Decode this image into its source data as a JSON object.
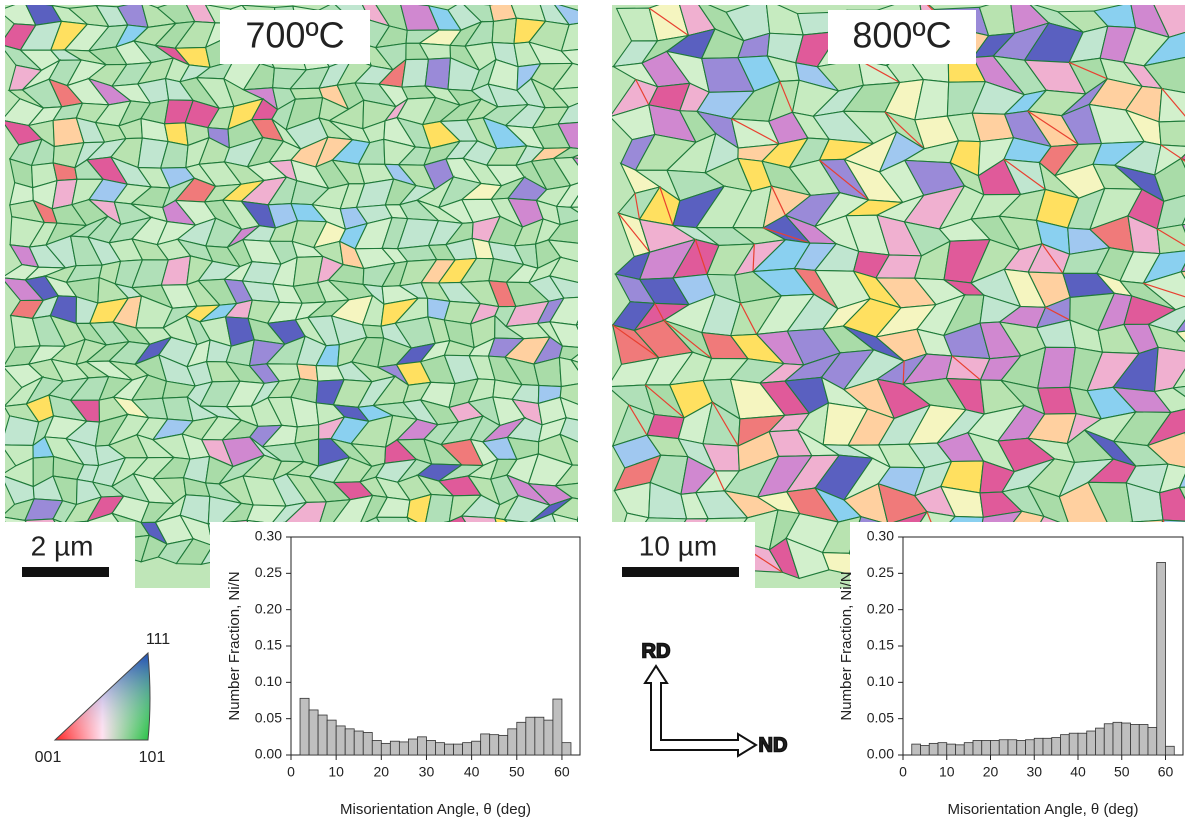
{
  "panels": [
    {
      "temperature": "700ºC",
      "scale_bar": "2 µm"
    },
    {
      "temperature": "800ºC",
      "scale_bar": "10 µm"
    }
  ],
  "ipf_legend": {
    "top": "111",
    "left": "001",
    "right": "101"
  },
  "sample_axes": {
    "vertical": "RD",
    "horizontal": "ND"
  },
  "chart_data": [
    {
      "type": "histogram",
      "xlabel": "Misorientation Angle, θ (deg)",
      "ylabel": "Number Fraction, Ni/N",
      "bins": [
        2,
        4,
        6,
        8,
        10,
        12,
        14,
        16,
        18,
        20,
        22,
        24,
        26,
        28,
        30,
        32,
        34,
        36,
        38,
        40,
        42,
        44,
        46,
        48,
        50,
        52,
        54,
        56,
        58,
        60,
        62
      ],
      "values": [
        0.078,
        0.062,
        0.055,
        0.048,
        0.04,
        0.036,
        0.033,
        0.031,
        0.02,
        0.016,
        0.019,
        0.018,
        0.022,
        0.025,
        0.02,
        0.017,
        0.015,
        0.015,
        0.017,
        0.019,
        0.029,
        0.028,
        0.027,
        0.036,
        0.045,
        0.052,
        0.052,
        0.048,
        0.077,
        0.017
      ],
      "color": "#bfbfbf",
      "xlim": [
        0,
        64
      ],
      "xticks": [
        0,
        10,
        20,
        30,
        40,
        50,
        60
      ],
      "ylim": [
        0,
        0.3
      ],
      "yticks": [
        {
          "value": 0,
          "label": "0.00"
        },
        {
          "value": 0.05,
          "label": "0.05"
        },
        {
          "value": 0.1,
          "label": "0.10"
        },
        {
          "value": 0.15,
          "label": "0.15"
        },
        {
          "value": 0.2,
          "label": "0.20"
        },
        {
          "value": 0.25,
          "label": "0.25"
        },
        {
          "value": 0.3,
          "label": "0.30"
        }
      ]
    },
    {
      "type": "histogram",
      "xlabel": "Misorientation Angle, θ (deg)",
      "ylabel": "Number Fraction, Ni/N",
      "bins": [
        2,
        4,
        6,
        8,
        10,
        12,
        14,
        16,
        18,
        20,
        22,
        24,
        26,
        28,
        30,
        32,
        34,
        36,
        38,
        40,
        42,
        44,
        46,
        48,
        50,
        52,
        54,
        56,
        58,
        60,
        62
      ],
      "values": [
        0.015,
        0.013,
        0.016,
        0.017,
        0.015,
        0.014,
        0.017,
        0.02,
        0.02,
        0.02,
        0.021,
        0.021,
        0.02,
        0.021,
        0.023,
        0.023,
        0.024,
        0.028,
        0.03,
        0.03,
        0.033,
        0.037,
        0.043,
        0.045,
        0.044,
        0.042,
        0.042,
        0.038,
        0.265,
        0.012
      ],
      "color": "#bfbfbf",
      "xlim": [
        0,
        64
      ],
      "xticks": [
        0,
        10,
        20,
        30,
        40,
        50,
        60
      ],
      "ylim": [
        0,
        0.3
      ],
      "yticks": [
        {
          "value": 0,
          "label": "0.00"
        },
        {
          "value": 0.05,
          "label": "0.05"
        },
        {
          "value": 0.1,
          "label": "0.10"
        },
        {
          "value": 0.15,
          "label": "0.15"
        },
        {
          "value": 0.2,
          "label": "0.20"
        },
        {
          "value": 0.25,
          "label": "0.25"
        },
        {
          "value": 0.3,
          "label": "0.30"
        }
      ]
    }
  ]
}
